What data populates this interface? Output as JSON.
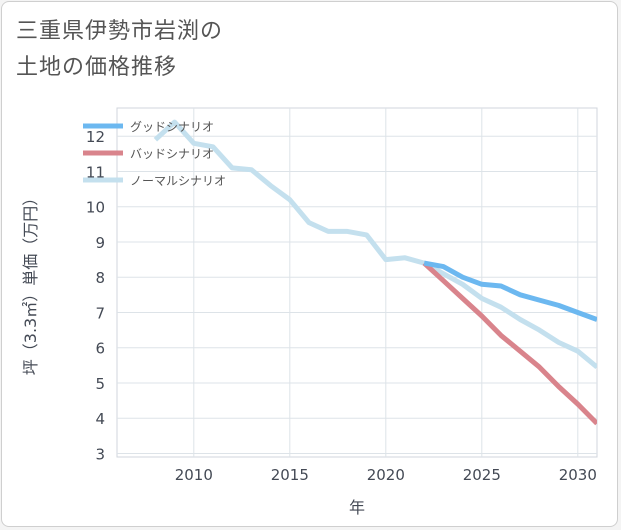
{
  "title_lines": [
    "三重県伊勢市岩渕の",
    "土地の価格推移"
  ],
  "chart_data": {
    "type": "line",
    "title": "三重県伊勢市岩渕の土地の価格推移",
    "xlabel": "年",
    "ylabel": "坪（3.3㎡）単価（万円）",
    "xlim": [
      2006,
      2031
    ],
    "ylim": [
      2.9,
      12.8
    ],
    "xticks": [
      2010,
      2015,
      2020,
      2025,
      2030
    ],
    "yticks": [
      3,
      4,
      5,
      6,
      7,
      8,
      9,
      10,
      11,
      12
    ],
    "grid": true,
    "legend_position": "top-left",
    "series": [
      {
        "name": "グッドシナリオ",
        "color": "#6cb8f0",
        "points": [
          [
            2022,
            8.4
          ],
          [
            2023,
            8.3
          ],
          [
            2024,
            8.0
          ],
          [
            2025,
            7.8
          ],
          [
            2026,
            7.75
          ],
          [
            2027,
            7.5
          ],
          [
            2028,
            7.35
          ],
          [
            2029,
            7.2
          ],
          [
            2030,
            7.0
          ],
          [
            2031,
            6.8
          ]
        ]
      },
      {
        "name": "バッドシナリオ",
        "color": "#d9848c",
        "points": [
          [
            2022,
            8.4
          ],
          [
            2023,
            7.9
          ],
          [
            2024,
            7.4
          ],
          [
            2025,
            6.9
          ],
          [
            2026,
            6.35
          ],
          [
            2027,
            5.9
          ],
          [
            2028,
            5.45
          ],
          [
            2029,
            4.9
          ],
          [
            2030,
            4.4
          ],
          [
            2031,
            3.85
          ]
        ]
      },
      {
        "name": "ノーマルシナリオ",
        "color": "#c4e0ee",
        "points": [
          [
            2008,
            11.9
          ],
          [
            2009,
            12.4
          ],
          [
            2010,
            11.8
          ],
          [
            2011,
            11.7
          ],
          [
            2012,
            11.1
          ],
          [
            2013,
            11.05
          ],
          [
            2014,
            10.6
          ],
          [
            2015,
            10.2
          ],
          [
            2016,
            9.55
          ],
          [
            2017,
            9.3
          ],
          [
            2018,
            9.3
          ],
          [
            2019,
            9.2
          ],
          [
            2020,
            8.5
          ],
          [
            2021,
            8.55
          ],
          [
            2022,
            8.4
          ],
          [
            2023,
            8.1
          ],
          [
            2024,
            7.8
          ],
          [
            2025,
            7.4
          ],
          [
            2026,
            7.15
          ],
          [
            2027,
            6.8
          ],
          [
            2028,
            6.5
          ],
          [
            2029,
            6.15
          ],
          [
            2030,
            5.9
          ],
          [
            2031,
            5.45
          ]
        ]
      }
    ]
  }
}
